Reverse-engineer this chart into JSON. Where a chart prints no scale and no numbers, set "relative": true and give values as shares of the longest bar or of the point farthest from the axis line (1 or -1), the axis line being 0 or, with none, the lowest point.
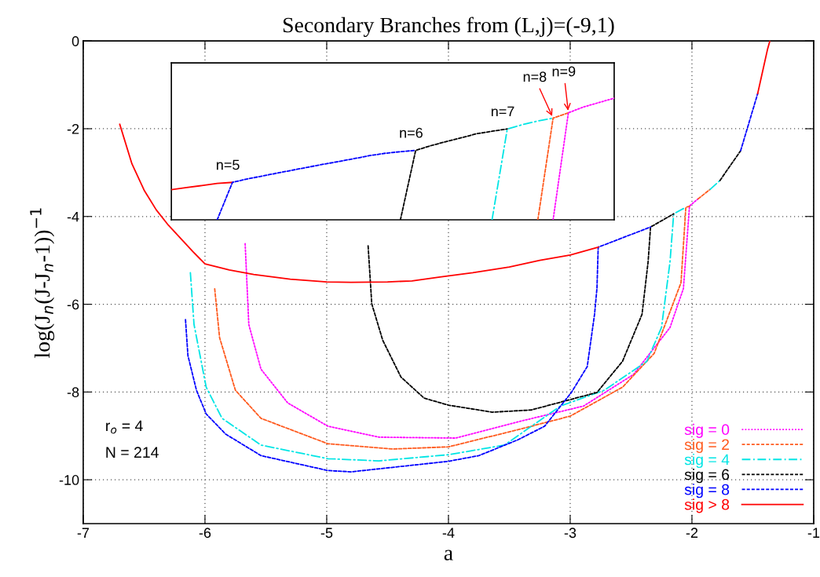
{
  "chart_data": [
    {
      "type": "line",
      "title": "Secondary Branches from (L,j)=(-9,1)",
      "xlabel": "a",
      "ylabel": "log(J$_{n}$(J-J$_{n}$-1))$^{−1}$",
      "xlim": [
        -7,
        -1
      ],
      "xticks": [
        -7,
        -6,
        -5,
        -4,
        -3,
        -2,
        -1
      ],
      "ylim": [
        -11,
        0
      ],
      "yticks": [
        -10,
        -8,
        -6,
        -4,
        -2,
        0
      ],
      "grid": true,
      "legend": "bottom right",
      "annotations": [
        "r$_{o}$ = 4",
        "N = 214"
      ],
      "series": [
        {
          "name": "sig = 0",
          "color": "#ff00ff",
          "line_style": "dotted",
          "x": [
            -5.67,
            -5.64,
            -5.54,
            -5.32,
            -4.99,
            -4.57,
            -3.94,
            -3.43,
            -2.89,
            -2.48,
            -2.18,
            -2.07,
            -2.02,
            -1.95
          ],
          "values": [
            -4.62,
            -6.46,
            -7.48,
            -8.25,
            -8.78,
            -9.03,
            -9.05,
            -8.68,
            -8.32,
            -7.6,
            -6.53,
            -5.64,
            -3.76,
            -3.6
          ]
        },
        {
          "name": "sig = 2",
          "color": "#ff5a1e",
          "line_style": "dashed",
          "x": [
            -5.92,
            -5.88,
            -5.75,
            -5.54,
            -4.99,
            -4.46,
            -4.0,
            -3.43,
            -3.0,
            -2.57,
            -2.31,
            -2.09,
            -2.05,
            -2.02,
            null,
            -1.95,
            -1.85
          ],
          "values": [
            -5.65,
            -6.76,
            -7.96,
            -8.6,
            -9.18,
            -9.3,
            -9.25,
            -8.86,
            -8.55,
            -7.89,
            -7.12,
            -5.51,
            -3.79,
            -3.77,
            null,
            -3.6,
            -3.38
          ]
        },
        {
          "name": "sig = 4",
          "color": "#00e5e5",
          "line_style": "dashdot",
          "x": [
            -6.12,
            -6.09,
            -5.99,
            -5.86,
            -5.54,
            -4.99,
            -4.57,
            -4.0,
            -3.54,
            -3.08,
            -2.72,
            -2.37,
            -2.25,
            -2.18,
            -2.15,
            -2.05,
            null,
            -1.85,
            -1.77
          ],
          "values": [
            -5.28,
            -6.46,
            -7.89,
            -8.6,
            -9.21,
            -9.52,
            -9.57,
            -9.43,
            -9.21,
            -8.32,
            -7.96,
            -7.3,
            -6.53,
            -5.03,
            -3.94,
            -3.79,
            null,
            -3.38,
            -3.18
          ]
        },
        {
          "name": "sig = 6",
          "color": "#000000",
          "line_style": "dashed",
          "x": [
            -4.66,
            -4.63,
            -4.54,
            -4.39,
            -4.2,
            -4.0,
            -3.64,
            -3.32,
            -2.78,
            -2.57,
            -2.41,
            -2.36,
            -2.34,
            -2.15,
            null,
            -1.77,
            -1.6
          ],
          "values": [
            -4.67,
            -5.99,
            -6.82,
            -7.66,
            -8.14,
            -8.3,
            -8.46,
            -8.41,
            -8.01,
            -7.3,
            -6.23,
            -5.03,
            -4.24,
            -3.94,
            null,
            -3.18,
            -2.5
          ]
        },
        {
          "name": "sig = 8",
          "color": "#0000ff",
          "line_style": "dashed",
          "x": [
            -6.16,
            -6.14,
            -6.07,
            -5.99,
            -5.83,
            -5.54,
            -4.99,
            -4.8,
            -4.0,
            -3.75,
            -3.43,
            -3.21,
            -2.99,
            -2.86,
            -2.8,
            -2.78,
            -2.77,
            -2.34,
            null,
            -1.6,
            -1.46
          ],
          "values": [
            -6.35,
            -7.17,
            -7.96,
            -8.5,
            -8.96,
            -9.45,
            -9.79,
            -9.82,
            -9.58,
            -9.45,
            -9.09,
            -8.78,
            -8.01,
            -7.42,
            -6.23,
            -5.63,
            -4.7,
            -4.24,
            null,
            -2.5,
            -1.2
          ]
        },
        {
          "name": "sig > 8",
          "color": "#ff0000",
          "line_style": "solid",
          "x": [
            -6.7,
            -6.6,
            -6.5,
            -6.4,
            -6.3,
            -6.2,
            -6.1,
            -6.0,
            -5.8,
            -5.6,
            -5.3,
            -5.0,
            -4.8,
            -4.5,
            -4.3,
            -4.07,
            -3.8,
            -3.5,
            -3.25,
            -3.0,
            -2.77,
            null,
            -1.46,
            -1.42,
            -1.38,
            -1.36
          ],
          "values": [
            -1.9,
            -2.8,
            -3.4,
            -3.85,
            -4.2,
            -4.5,
            -4.8,
            -5.08,
            -5.22,
            -5.32,
            -5.43,
            -5.49,
            -5.5,
            -5.49,
            -5.47,
            -5.38,
            -5.28,
            -5.15,
            -5.0,
            -4.88,
            -4.7,
            null,
            -1.2,
            -0.7,
            -0.2,
            0
          ]
        }
      ]
    },
    {
      "type": "line",
      "relative": true,
      "annotations": [
        "n=5",
        "n=6",
        "n=7",
        "n=8",
        "n=9"
      ],
      "categories": [
        null,
        null,
        null,
        null,
        null,
        null,
        null,
        null,
        null,
        null,
        null,
        null,
        null,
        null,
        null,
        null,
        null,
        null,
        null,
        null,
        null,
        null,
        null,
        null,
        null,
        null,
        null,
        null,
        null,
        null
      ],
      "series": [
        {
          "color": "#ff0000",
          "line_style": "solid",
          "values": [
            0.248,
            0.265,
            0.282,
            0.299,
            0.308,
            null,
            null,
            null,
            null,
            null,
            null,
            null,
            null,
            null,
            null,
            null,
            null,
            null,
            null,
            null,
            null,
            null,
            null,
            null,
            null,
            null,
            null,
            null,
            null,
            null
          ]
        },
        {
          "color": "#0000ff",
          "line_style": "dashed",
          "values": [
            null,
            null,
            null,
            0.0,
            0.308,
            0.337,
            0.361,
            0.386,
            0.41,
            0.434,
            0.458,
            0.48,
            0.504,
            0.528,
            0.547,
            0.56,
            0.571,
            null,
            null,
            null,
            null,
            null,
            null,
            null,
            null,
            null,
            null,
            null,
            null,
            null
          ]
        },
        {
          "color": "#000000",
          "line_style": "dashed",
          "values": [
            null,
            null,
            null,
            null,
            null,
            null,
            null,
            null,
            null,
            null,
            null,
            null,
            null,
            null,
            null,
            0.0,
            0.571,
            0.61,
            0.643,
            0.675,
            0.708,
            0.728,
            0.747,
            null,
            null,
            null,
            null,
            null,
            null,
            null
          ]
        },
        {
          "color": "#00e5e5",
          "line_style": "dashdot",
          "values": [
            null,
            null,
            null,
            null,
            null,
            null,
            null,
            null,
            null,
            null,
            null,
            null,
            null,
            null,
            null,
            null,
            null,
            null,
            null,
            null,
            null,
            0.0,
            0.747,
            0.783,
            0.812,
            0.836,
            null,
            null,
            null,
            null
          ]
        },
        {
          "color": "#ff5a1e",
          "line_style": "dashed",
          "values": [
            null,
            null,
            null,
            null,
            null,
            null,
            null,
            null,
            null,
            null,
            null,
            null,
            null,
            null,
            null,
            null,
            null,
            null,
            null,
            null,
            null,
            null,
            null,
            null,
            0.0,
            0.836,
            0.88,
            null,
            null,
            null
          ]
        },
        {
          "color": "#ff00ff",
          "line_style": "dotted",
          "values": [
            null,
            null,
            null,
            null,
            null,
            null,
            null,
            null,
            null,
            null,
            null,
            null,
            null,
            null,
            null,
            null,
            null,
            null,
            null,
            null,
            null,
            null,
            null,
            null,
            null,
            0.0,
            0.88,
            0.928,
            0.964,
            1.0
          ]
        }
      ]
    }
  ]
}
